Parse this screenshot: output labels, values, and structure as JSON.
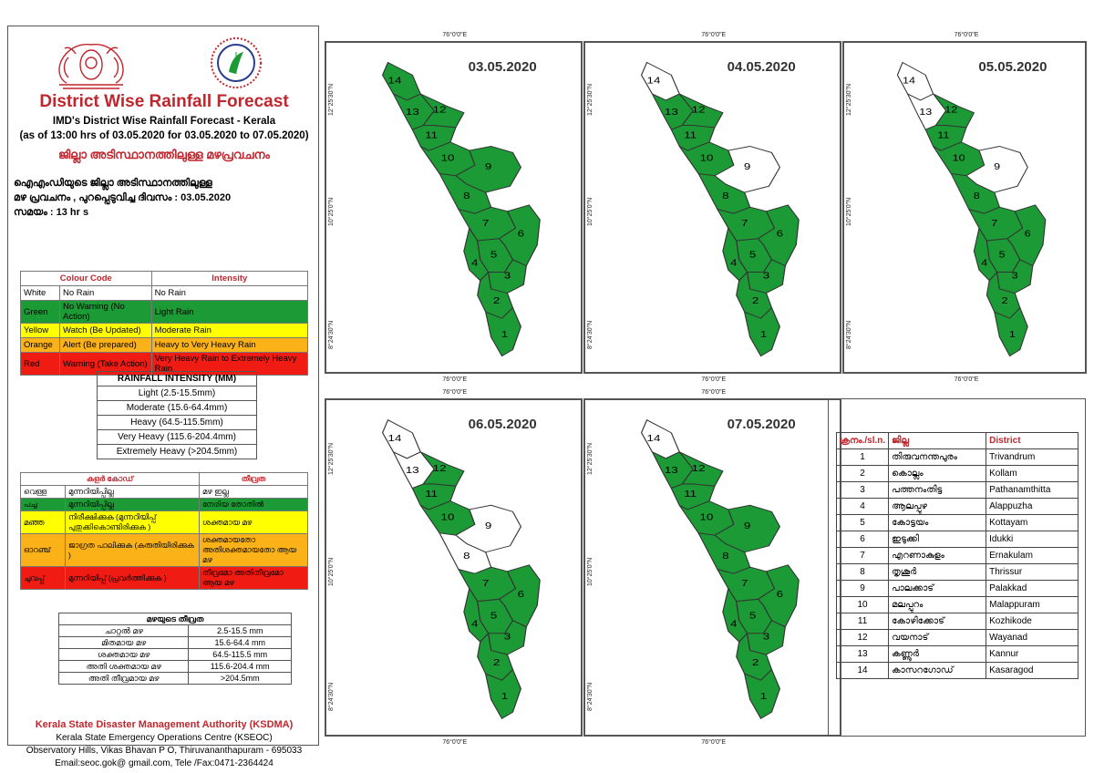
{
  "header": {
    "title": "District Wise Rainfall Forecast",
    "subtitle": "IMD's District Wise Rainfall Forecast - Kerala",
    "period": "(as of 13:00 hrs of 03.05.2020  for 03.05.2020  to 07.05.2020)",
    "title_mal": "ജില്ലാ അടിസ്ഥാനത്തിലുള്ള മഴപ്രവചനം",
    "desc_line1": "ഐഎംഡിയുടെ ജില്ലാ      അടിസ്ഥാനത്തിലുള്ള",
    "desc_line2": "മഴ പ്രവചനം , പുറപ്പെടുവിച്ച       ദിവസം : 03.05.2020",
    "desc_line3": "സമയം : 13   hr s"
  },
  "colour_code": {
    "head_code": "Colour Code",
    "head_intensity": "Intensity",
    "rows": [
      {
        "colour": "White",
        "code": "No Rain",
        "intensity": "No Rain",
        "bg": "white"
      },
      {
        "colour": "Green",
        "code": "No Warning (No Action)",
        "intensity": "Light Rain",
        "bg": "green"
      },
      {
        "colour": "Yellow",
        "code": "Watch (Be Updated)",
        "intensity": "Moderate Rain",
        "bg": "yellow"
      },
      {
        "colour": "Orange",
        "code": "Alert (Be prepared)",
        "intensity": "Heavy to Very Heavy Rain",
        "bg": "orange"
      },
      {
        "colour": "Red",
        "code": "Warning (Take Action)",
        "intensity": "Very Heavy Rain to Extremely Heavy Rain",
        "bg": "red"
      }
    ]
  },
  "rainfall_intensity": {
    "title": "RAINFALL INTENSITY (MM)",
    "rows": [
      "Light (2.5-15.5mm)",
      "Moderate (15.6-64.4mm)",
      "Heavy (64.5-115.5mm)",
      "Very Heavy (115.6-204.4mm)",
      "Extremely Heavy (>204.5mm)"
    ]
  },
  "mal_colour_code": {
    "head_code": "കളർ കോഡ്",
    "head_intensity": "തീവ്രത",
    "rows": [
      {
        "colour": "വെള്ള",
        "code": "മുന്നറിയിപ്പില്ല",
        "intensity": "മഴ ഇല്ല",
        "bg": "white"
      },
      {
        "colour": "പച്ച",
        "code": "മുന്നറിയിപ്പില്ല",
        "intensity": "നേരിയ തോതിൽ",
        "bg": "green"
      },
      {
        "colour": "മഞ്ഞ",
        "code": "നിരീക്ഷിക്കുക (മുന്നറിയിപ്പ് പുതുക്കികൊണ്ടിരിക്കുക )",
        "intensity": "ശക്തമായ മഴ",
        "bg": "yellow"
      },
      {
        "colour": "ഓറഞ്ച്",
        "code": "ജാഗ്രത പാലിക്കുക (കരുതിയിരിക്കുക )",
        "intensity": "ശക്തമായതോ അതിശക്തമായതോ ആയ മഴ",
        "bg": "orange"
      },
      {
        "colour": "ചുവപ്പ്",
        "code": "മുന്നറിയിപ്പ് (പ്രവർത്തിക്കുക )",
        "intensity": "തീവ്രമോ അതിതീവ്രമോ ആയ മഴ",
        "bg": "red"
      }
    ]
  },
  "mal_intensity": {
    "title": "മഴയുടെ തീവ്രത",
    "rows": [
      {
        "name": "ചാറ്റൽ മഴ",
        "range": "2.5-15.5 mm"
      },
      {
        "name": "മിതമായ മഴ",
        "range": "15.6-64.4 mm"
      },
      {
        "name": "ശക്തമായ മഴ",
        "range": "64.5-115.5 mm"
      },
      {
        "name": "അതി ശക്തമായ മഴ",
        "range": "115.6-204.4 mm"
      },
      {
        "name": "അതി തീവ്രമായ മഴ",
        "range": ">204.5mm"
      }
    ]
  },
  "footer": {
    "org": "Kerala State Disaster Management Authority (KSDMA)",
    "centre": "Kerala State Emergency Operations Centre (KSEOC)",
    "address": "Observatory Hills, Vikas Bhavan P O, Thiruvananthapuram - 695033",
    "contact": "Email:seoc.gok@ gmail.com, Tele /Fax:0471-2364424"
  },
  "map_coords": {
    "lon": "76°0'0\"E",
    "lat_n": "12°25'30\"N",
    "lat_m": "10°25'0\"N",
    "lat_s": "8°24'30\"N"
  },
  "colors": {
    "green": "#1c9a35",
    "white": "#ffffff",
    "title_red": "#c0262d"
  },
  "maps": [
    {
      "date": "03.05.2020",
      "districts": {
        "1": "green",
        "2": "green",
        "3": "green",
        "4": "green",
        "5": "green",
        "6": "green",
        "7": "green",
        "8": "green",
        "9": "green",
        "10": "green",
        "11": "green",
        "12": "green",
        "13": "green",
        "14": "green"
      }
    },
    {
      "date": "04.05.2020",
      "districts": {
        "1": "green",
        "2": "green",
        "3": "green",
        "4": "green",
        "5": "green",
        "6": "green",
        "7": "green",
        "8": "green",
        "9": "white",
        "10": "green",
        "11": "green",
        "12": "green",
        "13": "green",
        "14": "white"
      }
    },
    {
      "date": "05.05.2020",
      "districts": {
        "1": "green",
        "2": "green",
        "3": "green",
        "4": "green",
        "5": "green",
        "6": "green",
        "7": "green",
        "8": "green",
        "9": "white",
        "10": "green",
        "11": "green",
        "12": "green",
        "13": "white",
        "14": "white"
      }
    },
    {
      "date": "06.05.2020",
      "districts": {
        "1": "green",
        "2": "green",
        "3": "green",
        "4": "green",
        "5": "green",
        "6": "green",
        "7": "green",
        "8": "white",
        "9": "white",
        "10": "green",
        "11": "green",
        "12": "green",
        "13": "white",
        "14": "white"
      }
    },
    {
      "date": "07.05.2020",
      "districts": {
        "1": "green",
        "2": "green",
        "3": "green",
        "4": "green",
        "5": "green",
        "6": "green",
        "7": "green",
        "8": "green",
        "9": "green",
        "10": "green",
        "11": "green",
        "12": "green",
        "13": "green",
        "14": "white"
      }
    }
  ],
  "district_table": {
    "head_no": "ക്രനം./sl.n.",
    "head_mal": "ജില്ല",
    "head_en": "District",
    "rows": [
      {
        "no": "1",
        "mal": "തിരുവനന്തപുരം",
        "en": "Trivandrum"
      },
      {
        "no": "2",
        "mal": "കൊല്ലം",
        "en": "Kollam"
      },
      {
        "no": "3",
        "mal": "പത്തനംതിട്ട",
        "en": "Pathanamthitta"
      },
      {
        "no": "4",
        "mal": "ആലപ്പുഴ",
        "en": "Alappuzha"
      },
      {
        "no": "5",
        "mal": "കോട്ടയം",
        "en": "Kottayam"
      },
      {
        "no": "6",
        "mal": "ഇടുക്കി",
        "en": "Idukki"
      },
      {
        "no": "7",
        "mal": "എറണാകുളം",
        "en": "Ernakulam"
      },
      {
        "no": "8",
        "mal": "തൃശൂർ",
        "en": "Thrissur"
      },
      {
        "no": "9",
        "mal": "പാലക്കാട്",
        "en": "Palakkad"
      },
      {
        "no": "10",
        "mal": "മലപ്പുറം",
        "en": "Malappuram"
      },
      {
        "no": "11",
        "mal": "കോഴിക്കോട്",
        "en": "Kozhikode"
      },
      {
        "no": "12",
        "mal": "വയനാട്",
        "en": "Wayanad"
      },
      {
        "no": "13",
        "mal": "കണ്ണൂർ",
        "en": "Kannur"
      },
      {
        "no": "14",
        "mal": "കാസറഗോഡ്",
        "en": "Kasaragod"
      }
    ]
  }
}
